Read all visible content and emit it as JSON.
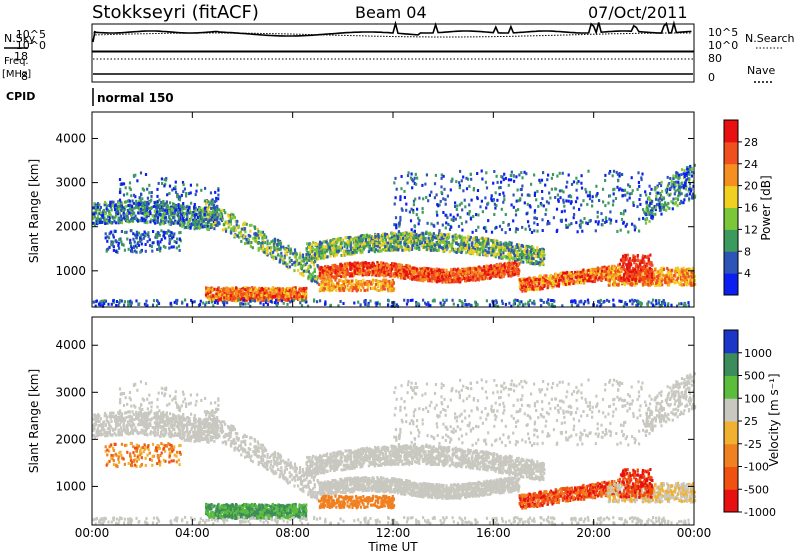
{
  "header": {
    "station": "Stokkseyri (fitACF)",
    "beam": "Beam 04",
    "date": "07/Oct/2011"
  },
  "info_panels": {
    "nsky_label": "N.Sky",
    "nsearch_label": "N.Search",
    "noise_ticks_left": [
      "10^5",
      "10^0"
    ],
    "noise_ticks_right": [
      "10^5",
      "10^0"
    ],
    "freq_label_1": "Freq.",
    "freq_label_2": "[MHz]",
    "freq_ticks": [
      "18",
      "8"
    ],
    "nave_label": "Nave",
    "nave_ticks": [
      "80",
      "0"
    ],
    "cpid_label": "CPID",
    "cpid_value": "normal 150"
  },
  "chart_data": [
    {
      "type": "heatmap",
      "name": "power",
      "ylabel": "Slant Range [km]",
      "yticks": [
        "1000",
        "2000",
        "3000",
        "4000"
      ],
      "ylim": [
        180,
        4600
      ],
      "colorbar_label": "Power [dB]",
      "colorbar_ticks": [
        "4",
        "8",
        "12",
        "16",
        "20",
        "24",
        "28"
      ],
      "colorbar_colors": [
        "#0a1ff0",
        "#2d55b8",
        "#3c9a5e",
        "#7cc63a",
        "#f0d020",
        "#f59020",
        "#f05020",
        "#e81010"
      ]
    },
    {
      "type": "heatmap",
      "name": "velocity",
      "ylabel": "Slant Range [km]",
      "yticks": [
        "1000",
        "2000",
        "3000",
        "4000"
      ],
      "ylim": [
        180,
        4600
      ],
      "colorbar_label": "Velocity [m s⁻¹]",
      "colorbar_ticks": [
        "1000",
        "500",
        "100",
        "25",
        "-25",
        "-100",
        "-500",
        "-1000"
      ],
      "colorbar_colors": [
        "#1c36c8",
        "#3c8c5c",
        "#5cbc3c",
        "#c8c8c0",
        "#f0b030",
        "#f08020",
        "#f05010",
        "#e81010"
      ]
    }
  ],
  "x_axis": {
    "label": "Time UT",
    "ticks": [
      "00:00",
      "04:00",
      "08:00",
      "12:00",
      "16:00",
      "20:00",
      "00:00"
    ]
  }
}
